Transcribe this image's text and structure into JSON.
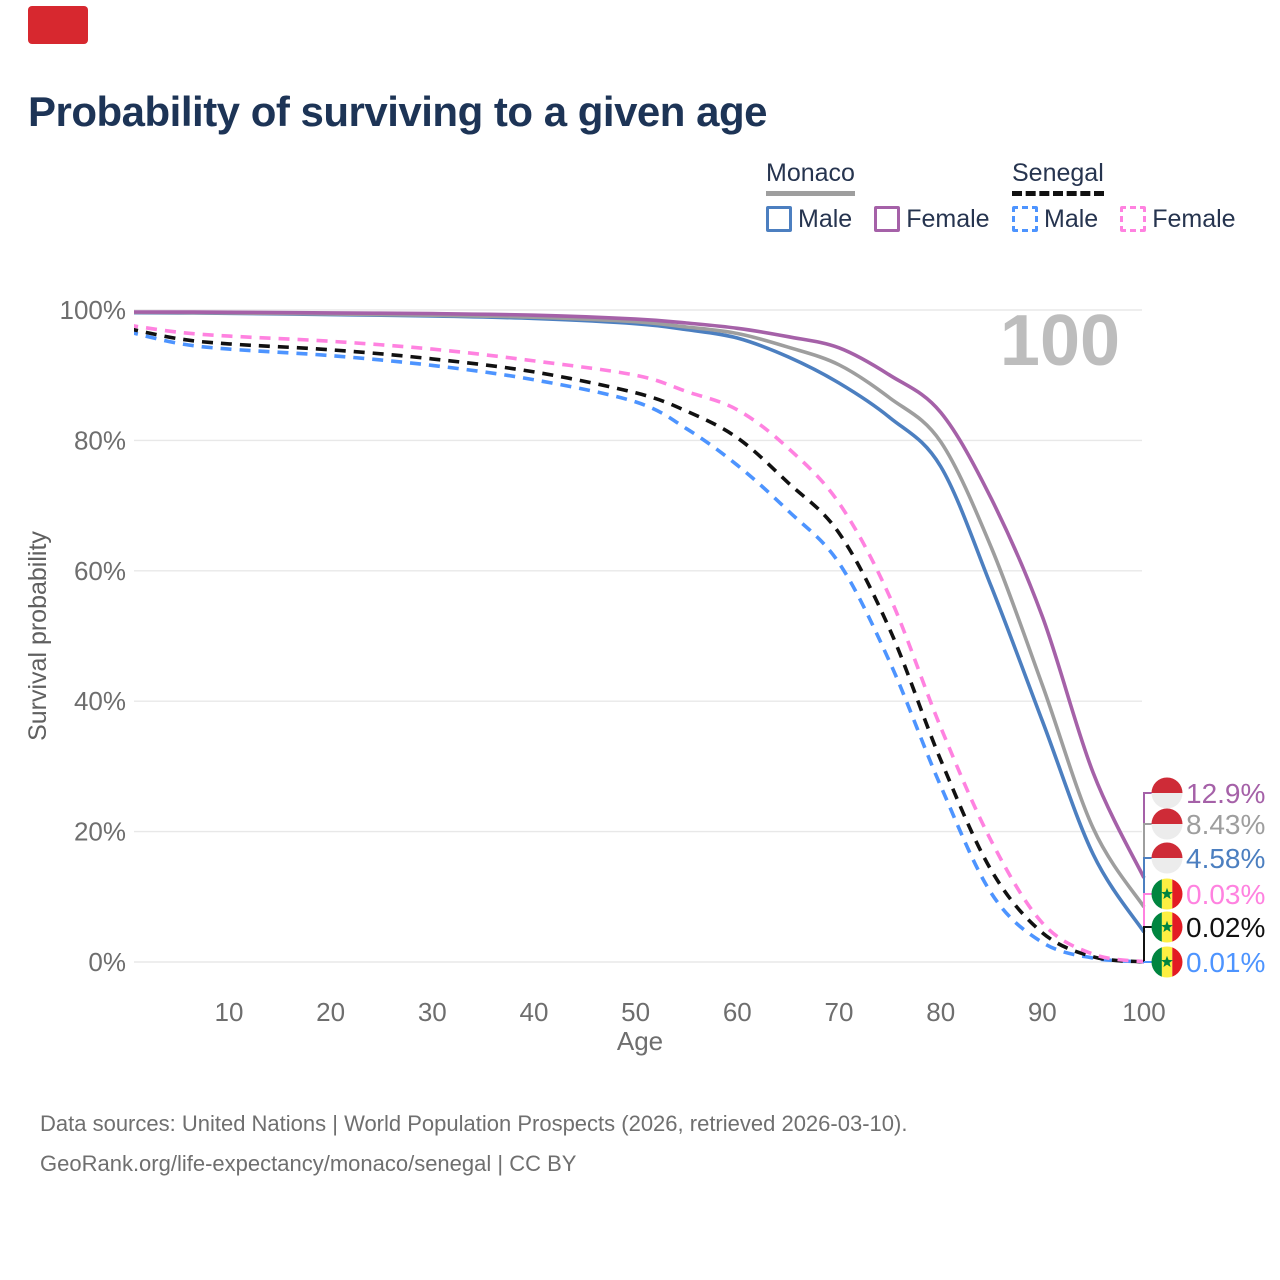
{
  "title": "Probability of surviving to a given age",
  "brand_color": "#d7282f",
  "hover_indicator": {
    "value": "100",
    "color": "#bdbdbd"
  },
  "legend": {
    "groups": [
      {
        "country": "Monaco",
        "line": "solid",
        "underline_color": "#9e9e9e",
        "items": [
          {
            "label": "Male",
            "color": "#4c7fc0"
          },
          {
            "label": "Female",
            "color": "#a561a8"
          }
        ]
      },
      {
        "country": "Senegal",
        "line": "dashed",
        "underline_color": "#111111",
        "items": [
          {
            "label": "Male",
            "color": "#4d94ff"
          },
          {
            "label": "Female",
            "color": "#ff82e0"
          }
        ]
      }
    ]
  },
  "chart_data": {
    "type": "line",
    "title": "Probability of surviving to a given age",
    "xlabel": "Age",
    "ylabel": "Survival probability",
    "xlim": [
      0,
      100
    ],
    "ylim": [
      0,
      100
    ],
    "x_ticks": [
      10,
      20,
      30,
      40,
      50,
      60,
      70,
      80,
      90,
      100
    ],
    "y_ticks": [
      0,
      20,
      40,
      60,
      80,
      100
    ],
    "y_tick_labels": [
      "0%",
      "20%",
      "40%",
      "60%",
      "80%",
      "100%"
    ],
    "grid": "horizontal",
    "legend_position": "top-right",
    "x": [
      0,
      5,
      10,
      20,
      30,
      40,
      50,
      55,
      60,
      65,
      70,
      75,
      80,
      85,
      90,
      95,
      100
    ],
    "series": [
      {
        "name": "Senegal Male",
        "country": "Senegal",
        "sex": "Male",
        "line": "dashed",
        "color": "#4d94ff",
        "flag": "senegal",
        "end_label": "0.01%",
        "values": [
          96.7,
          94.9,
          94.0,
          93.0,
          91.5,
          89.3,
          85.9,
          81.8,
          76.2,
          69.2,
          61.2,
          46.0,
          27.0,
          10.5,
          3.0,
          0.6,
          0.01
        ]
      },
      {
        "name": "Senegal All",
        "country": "Senegal",
        "sex": "All",
        "line": "dashed",
        "color": "#111111",
        "flag": "senegal",
        "end_label": "0.02%",
        "values": [
          97.2,
          95.6,
          94.8,
          93.9,
          92.5,
          90.5,
          87.3,
          84.5,
          80.4,
          73.5,
          65.8,
          51.0,
          31.0,
          14.0,
          4.5,
          0.8,
          0.02
        ]
      },
      {
        "name": "Senegal Female",
        "country": "Senegal",
        "sex": "Female",
        "line": "dashed",
        "color": "#ff82e0",
        "flag": "senegal",
        "end_label": "0.03%",
        "values": [
          97.7,
          96.6,
          96.0,
          95.2,
          94.0,
          92.2,
          90.0,
          87.5,
          84.7,
          78.8,
          70.4,
          56.0,
          36.0,
          18.5,
          6.0,
          1.2,
          0.03
        ]
      },
      {
        "name": "Monaco Male",
        "country": "Monaco",
        "sex": "Male",
        "line": "solid",
        "color": "#4c7fc0",
        "flag": "monaco",
        "end_label": "4.58%",
        "values": [
          99.6,
          99.55,
          99.5,
          99.3,
          99.1,
          98.7,
          97.9,
          97.0,
          95.7,
          92.8,
          88.8,
          83.5,
          76.0,
          57.5,
          37.0,
          16.5,
          4.58
        ]
      },
      {
        "name": "Monaco All",
        "country": "Monaco",
        "sex": "All",
        "line": "solid",
        "color": "#9e9e9e",
        "flag": "monaco",
        "end_label": "8.43%",
        "values": [
          99.65,
          99.6,
          99.55,
          99.4,
          99.2,
          98.9,
          98.2,
          97.4,
          96.4,
          94.3,
          91.6,
          86.5,
          79.8,
          63.5,
          42.5,
          20.5,
          8.43
        ]
      },
      {
        "name": "Monaco Female",
        "country": "Monaco",
        "sex": "Female",
        "line": "solid",
        "color": "#a561a8",
        "flag": "monaco",
        "end_label": "12.9%",
        "values": [
          99.7,
          99.68,
          99.65,
          99.55,
          99.45,
          99.2,
          98.6,
          98.0,
          97.2,
          95.9,
          94.2,
          90.0,
          84.3,
          71.0,
          53.0,
          29.0,
          12.9
        ]
      }
    ],
    "flag_colors": {
      "monaco": {
        "top": "#ce2b37",
        "bottom": "#ececec"
      },
      "senegal": {
        "green": "#00853f",
        "yellow": "#fdef42",
        "red": "#e31b23",
        "star": "#00853f"
      }
    }
  },
  "footer": {
    "line1": "Data sources: United Nations | World Population Prospects (2026, retrieved 2026-03-10).",
    "line2": "GeoRank.org/life-expectancy/monaco/senegal | CC BY"
  }
}
